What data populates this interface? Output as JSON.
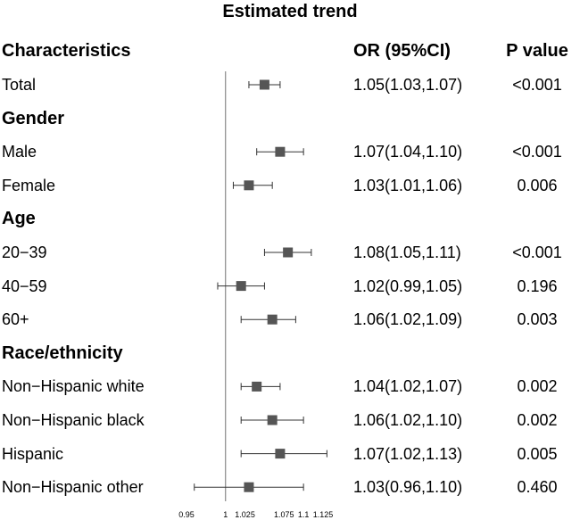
{
  "title": "Estimated trend",
  "headers": {
    "characteristics": "Characteristics",
    "or": "OR (95%CI)",
    "p": "P value"
  },
  "rows": [
    {
      "label": "Total",
      "group": false,
      "or_text": "1.05(1.03,1.07)",
      "p": "<0.001"
    },
    {
      "label": "Gender",
      "group": true,
      "or_text": "",
      "p": ""
    },
    {
      "label": "Male",
      "group": false,
      "or_text": "1.07(1.04,1.10)",
      "p": "<0.001"
    },
    {
      "label": "Female",
      "group": false,
      "or_text": "1.03(1.01,1.06)",
      "p": "0.006"
    },
    {
      "label": "Age",
      "group": true,
      "or_text": "",
      "p": ""
    },
    {
      "label": "20−39",
      "group": false,
      "or_text": "1.08(1.05,1.11)",
      "p": "<0.001"
    },
    {
      "label": "40−59",
      "group": false,
      "or_text": "1.02(0.99,1.05)",
      "p": "0.196"
    },
    {
      "label": "60+",
      "group": false,
      "or_text": "1.06(1.02,1.09)",
      "p": "0.003"
    },
    {
      "label": "Race/ethnicity",
      "group": true,
      "or_text": "",
      "p": ""
    },
    {
      "label": "Non−Hispanic white",
      "group": false,
      "or_text": "1.04(1.02,1.07)",
      "p": "0.002"
    },
    {
      "label": "Non−Hispanic black",
      "group": false,
      "or_text": "1.06(1.02,1.10)",
      "p": "0.002"
    },
    {
      "label": "Hispanic",
      "group": false,
      "or_text": "1.07(1.02,1.13)",
      "p": "0.005"
    },
    {
      "label": "Non−Hispanic other",
      "group": false,
      "or_text": "1.03(0.96,1.10)",
      "p": "0.460"
    }
  ],
  "chart_data": {
    "type": "forest",
    "title": "Estimated trend",
    "reference_line": 1,
    "xlim": [
      0.95,
      1.125
    ],
    "xticks": [
      0.95,
      1,
      1.025,
      1.075,
      1.1,
      1.125
    ],
    "xtick_labels": [
      "0.95",
      "1",
      "1.025",
      "1.075",
      "1.1",
      "1.125"
    ],
    "series": [
      {
        "name": "Total",
        "or": 1.05,
        "lower": 1.03,
        "upper": 1.07
      },
      {
        "name": "Male",
        "or": 1.07,
        "lower": 1.04,
        "upper": 1.1
      },
      {
        "name": "Female",
        "or": 1.03,
        "lower": 1.01,
        "upper": 1.06
      },
      {
        "name": "20−39",
        "or": 1.08,
        "lower": 1.05,
        "upper": 1.11
      },
      {
        "name": "40−59",
        "or": 1.02,
        "lower": 0.99,
        "upper": 1.05
      },
      {
        "name": "60+",
        "or": 1.06,
        "lower": 1.02,
        "upper": 1.09
      },
      {
        "name": "Non−Hispanic white",
        "or": 1.04,
        "lower": 1.02,
        "upper": 1.07
      },
      {
        "name": "Non−Hispanic black",
        "or": 1.06,
        "lower": 1.02,
        "upper": 1.1
      },
      {
        "name": "Hispanic",
        "or": 1.07,
        "lower": 1.02,
        "upper": 1.13
      },
      {
        "name": "Non−Hispanic other",
        "or": 1.03,
        "lower": 0.96,
        "upper": 1.1
      }
    ],
    "colors": {
      "marker": "#555555",
      "line": "#333333",
      "reference": "#888888"
    }
  }
}
